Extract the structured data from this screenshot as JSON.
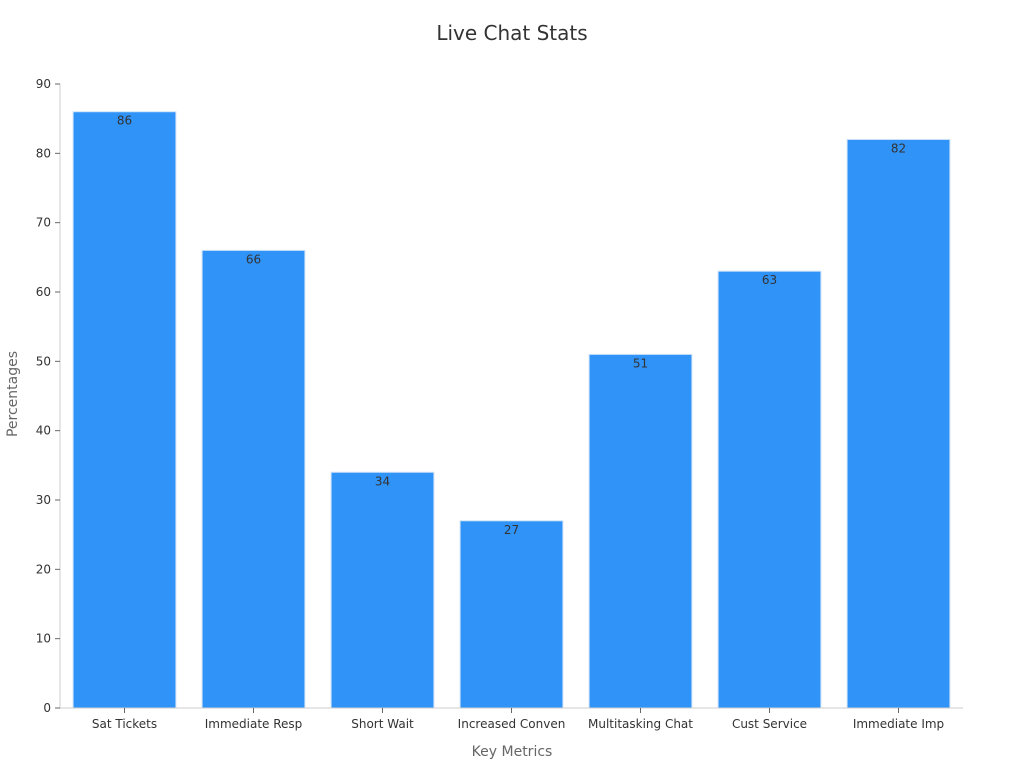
{
  "chart_data": {
    "type": "bar",
    "title": "Live Chat Stats",
    "xlabel": "Key Metrics",
    "ylabel": "Percentages",
    "categories": [
      "Sat Tickets",
      "Immediate Resp",
      "Short Wait",
      "Increased Conven",
      "Multitasking Chat",
      "Cust Service",
      "Immediate Imp"
    ],
    "values": [
      86,
      66,
      34,
      27,
      51,
      63,
      82
    ],
    "ylim": [
      0,
      90
    ],
    "yticks": [
      0,
      10,
      20,
      30,
      40,
      50,
      60,
      70,
      80,
      90
    ],
    "grid": false,
    "legend": "none",
    "bar_color": "#3093f8",
    "bar_edge_color": "#cfe3f7"
  }
}
